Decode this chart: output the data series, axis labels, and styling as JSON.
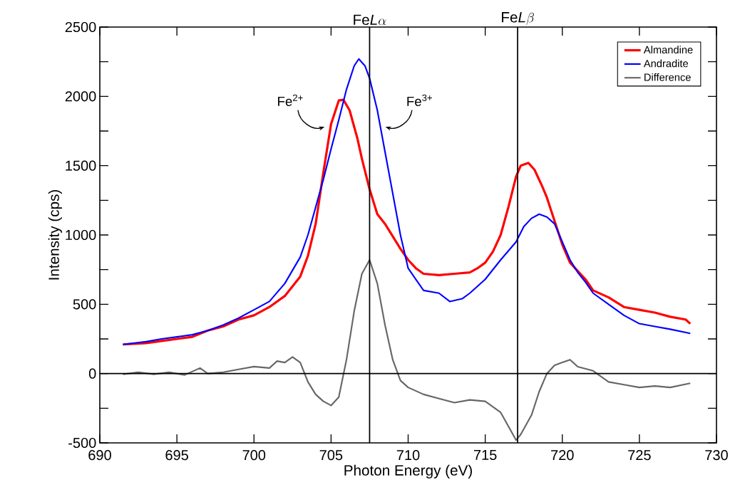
{
  "chart_data": {
    "type": "line",
    "xlabel": "Photon Energy (eV)",
    "ylabel": "Intensity (cps)",
    "xlim": [
      690,
      730
    ],
    "xticks": [
      690,
      695,
      700,
      705,
      710,
      715,
      720,
      725,
      730
    ],
    "ylim": [
      -500,
      2500
    ],
    "yticks": [
      -500,
      {
        "value": -250,
        "label": null
      },
      0,
      {
        "value": 250,
        "label": null
      },
      500,
      {
        "value": 750,
        "label": null
      },
      1000,
      {
        "value": 1250,
        "label": null
      },
      1500,
      {
        "value": 1750,
        "label": null
      },
      2000,
      {
        "value": 2250,
        "label": null
      },
      2500
    ],
    "legend": "top right",
    "grid": false,
    "marker": "none",
    "line_style": "solid",
    "series": [
      {
        "name": "Almandine",
        "color": "#ff0000",
        "x": [
          691.5,
          693,
          694,
          695,
          696,
          697,
          698,
          699,
          700,
          701,
          702,
          703,
          703.5,
          704,
          704.5,
          705,
          705.5,
          705.8,
          706.2,
          706.7,
          707,
          707.5,
          708,
          708.5,
          709,
          709.5,
          710,
          710.5,
          711,
          712,
          713,
          714,
          714.5,
          715,
          715.5,
          716,
          716.5,
          717,
          717.3,
          717.8,
          718.2,
          718.7,
          719,
          719.5,
          720,
          720.5,
          721,
          721.5,
          722,
          723,
          724,
          725,
          726,
          727,
          728,
          728.3
        ],
        "values": [
          210,
          220,
          235,
          250,
          265,
          310,
          340,
          390,
          420,
          480,
          560,
          700,
          850,
          1080,
          1450,
          1800,
          1970,
          1975,
          1900,
          1700,
          1550,
          1330,
          1150,
          1080,
          990,
          900,
          820,
          760,
          720,
          710,
          720,
          730,
          760,
          800,
          880,
          1000,
          1200,
          1420,
          1500,
          1520,
          1470,
          1350,
          1270,
          1100,
          930,
          800,
          740,
          680,
          600,
          550,
          480,
          460,
          440,
          410,
          390,
          360
        ]
      },
      {
        "name": "Andradite",
        "color": "#0000ff",
        "x": [
          691.5,
          693,
          694,
          695,
          696,
          697,
          698,
          699,
          700,
          701,
          702,
          703,
          703.5,
          704,
          704.5,
          705,
          705.5,
          706,
          706.5,
          706.8,
          707.2,
          707.5,
          708,
          708.5,
          709,
          709.5,
          710,
          710.5,
          711,
          712,
          712.7,
          713.5,
          714,
          715,
          716,
          717,
          717.5,
          718,
          718.5,
          719,
          719.5,
          720,
          720.5,
          721,
          721.5,
          722,
          723,
          724,
          725,
          726,
          727,
          728.3
        ],
        "values": [
          210,
          230,
          250,
          265,
          280,
          310,
          350,
          400,
          460,
          520,
          650,
          840,
          1000,
          1200,
          1400,
          1620,
          1830,
          2050,
          2220,
          2270,
          2220,
          2130,
          1900,
          1600,
          1300,
          1000,
          760,
          680,
          600,
          580,
          520,
          540,
          580,
          680,
          820,
          950,
          1060,
          1120,
          1150,
          1130,
          1080,
          950,
          820,
          730,
          660,
          580,
          500,
          420,
          360,
          340,
          320,
          290
        ]
      },
      {
        "name": "Difference",
        "color": "#666666",
        "x": [
          691.5,
          692.5,
          693.5,
          694.5,
          695.5,
          696.5,
          697,
          698,
          699,
          700,
          701,
          701.5,
          702,
          702.5,
          703,
          703.5,
          704,
          704.5,
          705,
          705.5,
          706,
          706.5,
          707,
          707.5,
          708,
          708.5,
          709,
          709.5,
          710,
          711,
          712,
          713,
          714,
          715,
          716,
          717,
          717.3,
          718,
          718.5,
          719,
          719.5,
          720,
          720.5,
          721,
          722,
          723,
          724,
          725,
          726,
          727,
          728.3
        ],
        "values": [
          -5,
          10,
          -5,
          10,
          -10,
          40,
          0,
          10,
          30,
          50,
          40,
          90,
          80,
          120,
          80,
          -60,
          -150,
          -200,
          -230,
          -170,
          100,
          450,
          720,
          820,
          650,
          350,
          100,
          -50,
          -100,
          -150,
          -180,
          -210,
          -190,
          -200,
          -280,
          -480,
          -440,
          -300,
          -130,
          0,
          60,
          80,
          100,
          50,
          20,
          -60,
          -80,
          -100,
          -90,
          -100,
          -70
        ]
      }
    ],
    "ref_lines": [
      {
        "axis": "y",
        "value": 0,
        "color": "#000000"
      },
      {
        "axis": "x",
        "value": 707.5,
        "label": "\\mathrm{Fe}\\mathit{L}\\alpha",
        "color": "#000000"
      },
      {
        "axis": "x",
        "value": 717.1,
        "label": "\\mathrm{Fe}\\mathit{L}\\beta",
        "color": "#000000"
      }
    ],
    "annotations": [
      {
        "text": "Fe$^{2+}$",
        "x": 704.7,
        "y": 1780
      },
      {
        "text": "Fe$^{3+}$",
        "x": 708.4,
        "y": 1780
      }
    ]
  }
}
